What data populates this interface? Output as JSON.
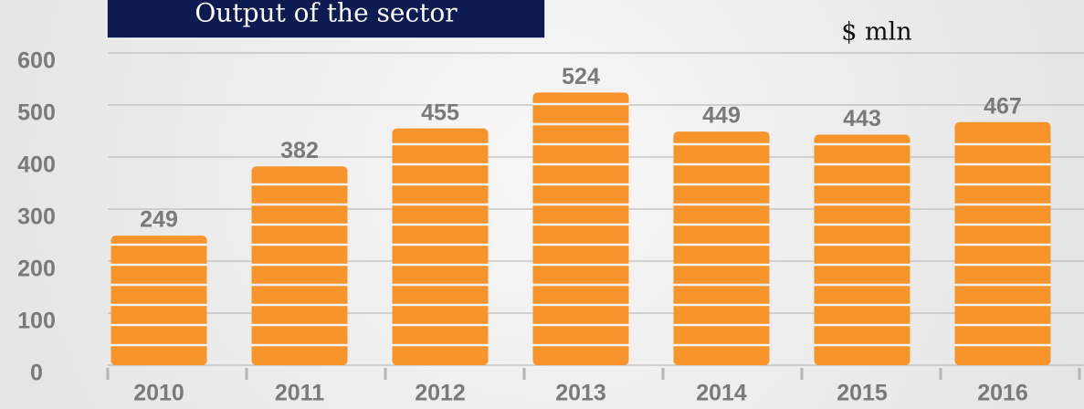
{
  "chart_data": {
    "type": "bar",
    "title": "Output of the sector",
    "subtitle": "$ mln",
    "categories": [
      "2010",
      "2011",
      "2012",
      "2013",
      "2014",
      "2015",
      "2016"
    ],
    "values": [
      249,
      382,
      455,
      524,
      449,
      443,
      467
    ],
    "color": "#f7942b",
    "ylim": [
      0,
      600
    ],
    "yticks": [
      0,
      100,
      200,
      300,
      400,
      500,
      600
    ],
    "grid": true
  }
}
